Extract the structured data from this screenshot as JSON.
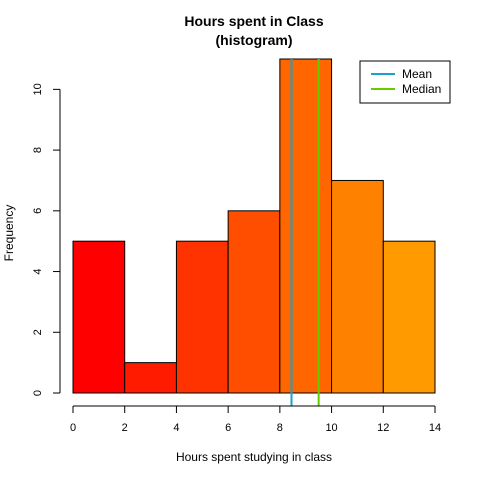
{
  "chart_data": {
    "type": "bar",
    "title": "Hours spent in Class",
    "subtitle": "(histogram)",
    "xlabel": "Hours spent studying in class",
    "ylabel": "Frequency",
    "bins": [
      {
        "from": 0,
        "to": 2,
        "count": 5,
        "color": "#FF0000"
      },
      {
        "from": 2,
        "to": 4,
        "count": 1,
        "color": "#FF1B00"
      },
      {
        "from": 4,
        "to": 6,
        "count": 5,
        "color": "#FF3300"
      },
      {
        "from": 6,
        "to": 8,
        "count": 6,
        "color": "#FF4E00"
      },
      {
        "from": 8,
        "to": 10,
        "count": 11,
        "color": "#FF6600"
      },
      {
        "from": 10,
        "to": 12,
        "count": 7,
        "color": "#FF8100"
      },
      {
        "from": 12,
        "to": 14,
        "count": 5,
        "color": "#FF9A00"
      }
    ],
    "xlim": [
      0,
      14
    ],
    "ylim": [
      0,
      11
    ],
    "xticks": [
      0,
      2,
      4,
      6,
      8,
      10,
      12,
      14
    ],
    "yticks": [
      0,
      2,
      4,
      6,
      8,
      10
    ],
    "reference_lines": [
      {
        "name": "Mean",
        "x": 8.45,
        "color": "#1F9FD0"
      },
      {
        "name": "Median",
        "x": 9.5,
        "color": "#66CC00"
      }
    ],
    "legend": {
      "position": "top-right",
      "entries": [
        "Mean",
        "Median"
      ]
    },
    "grid": false
  }
}
